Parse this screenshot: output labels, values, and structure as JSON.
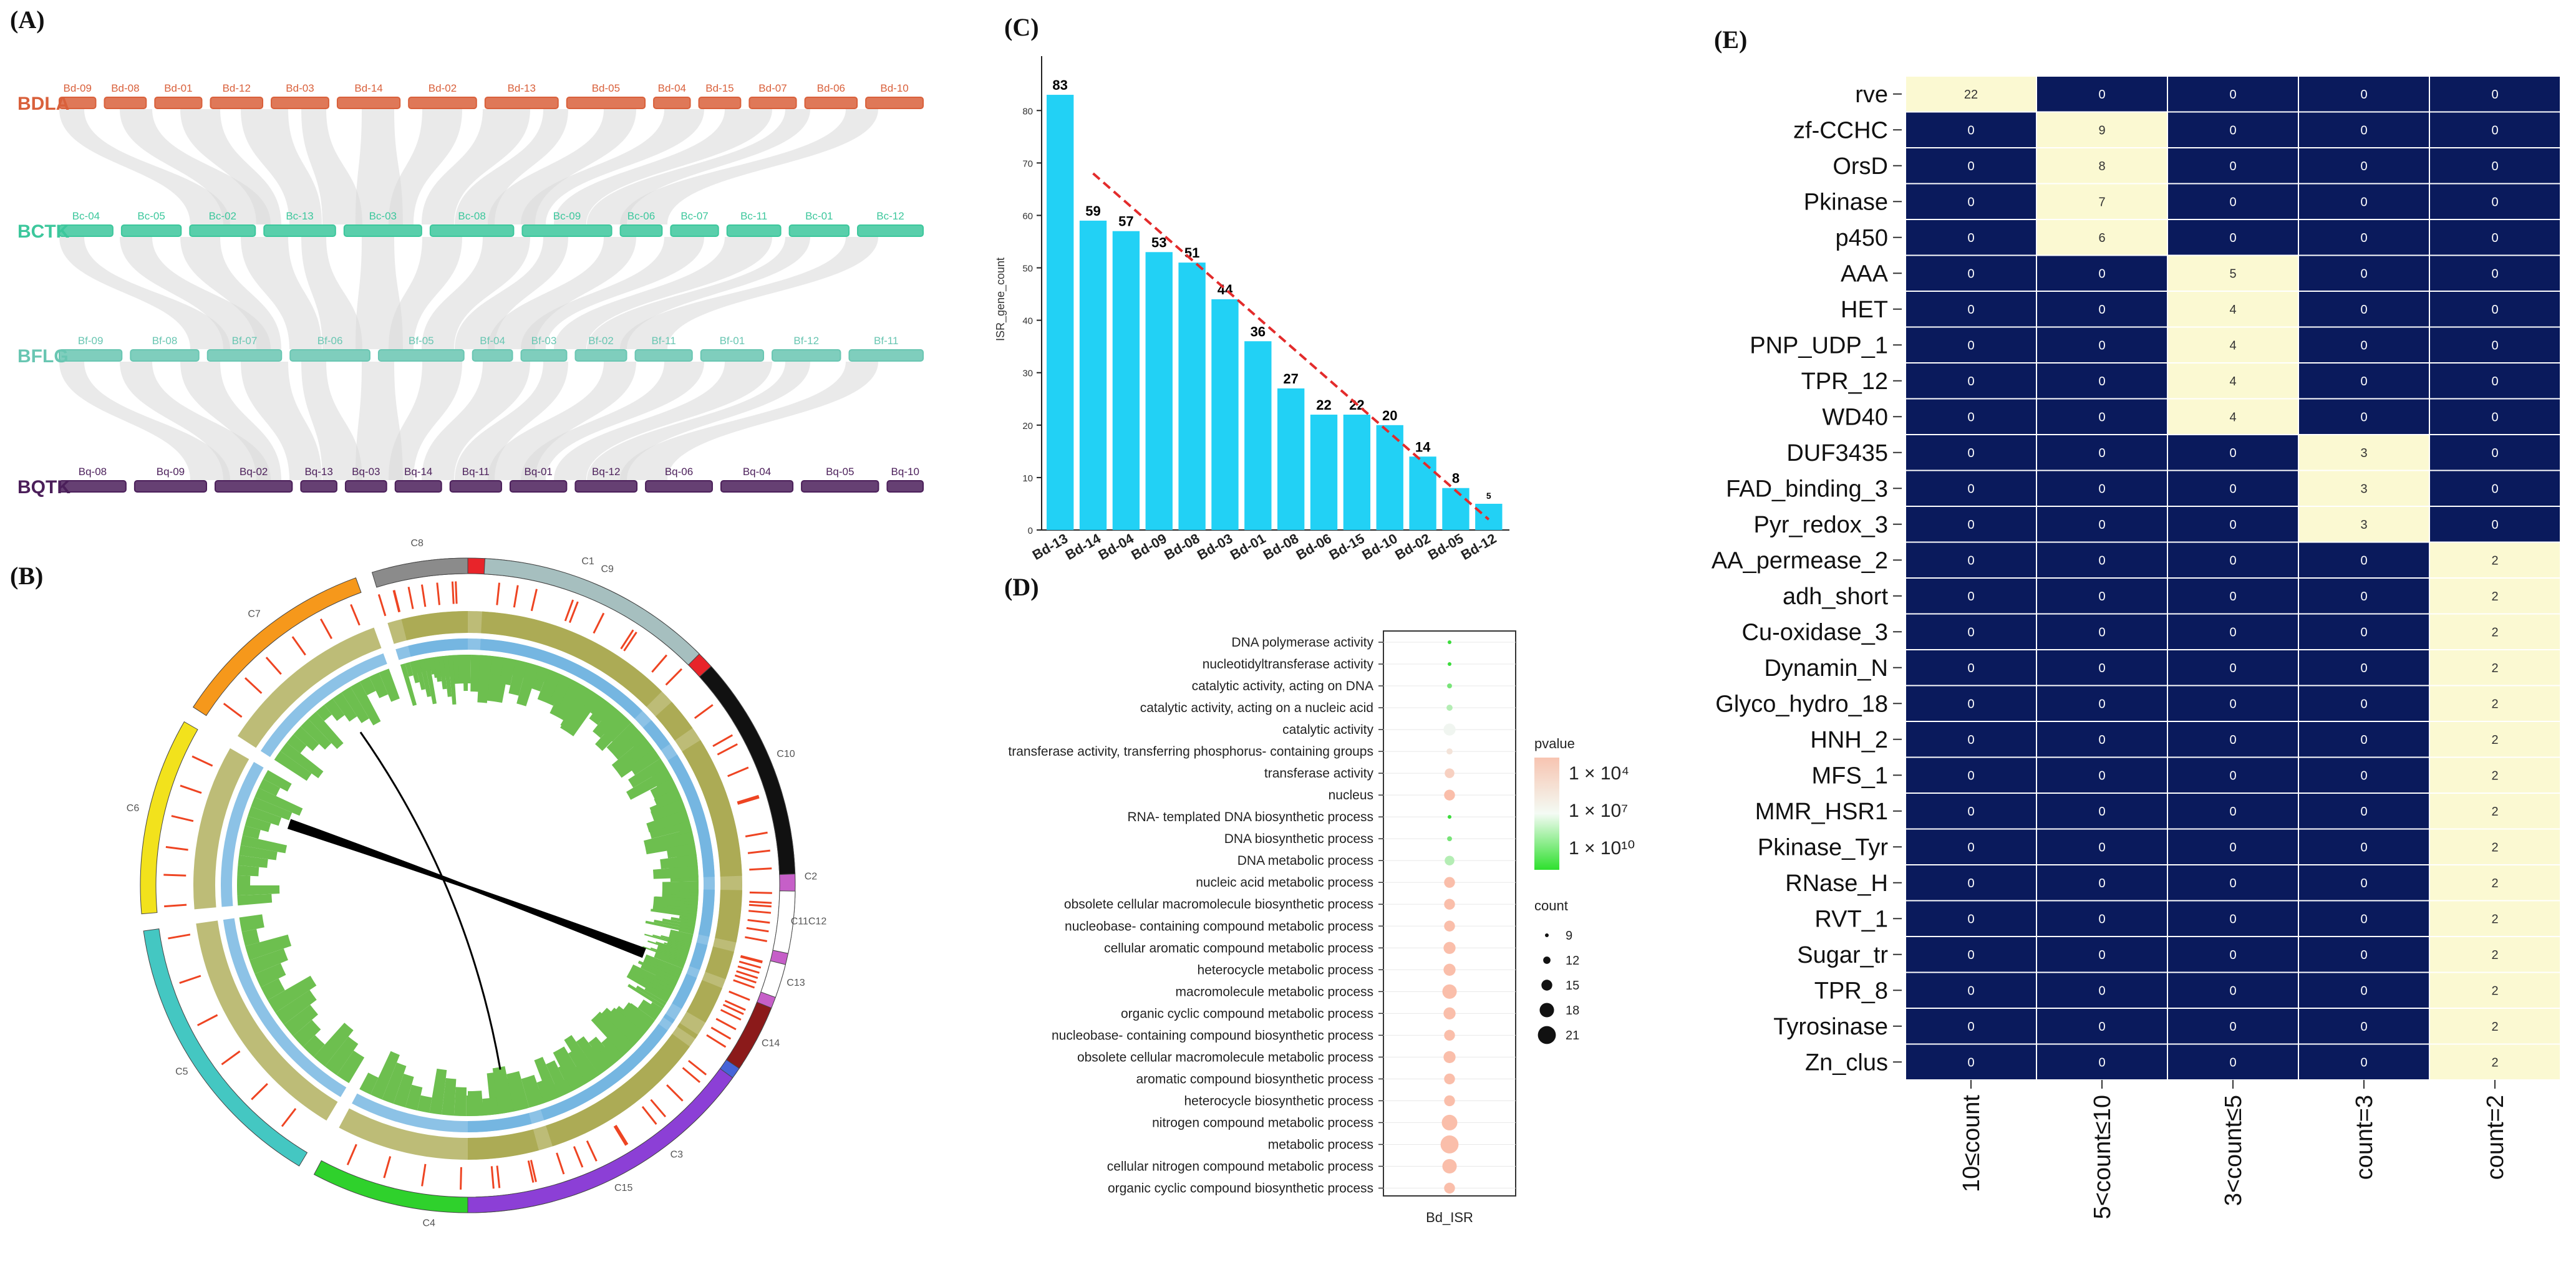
{
  "panels": {
    "A": {
      "label": "(A)",
      "species": [
        {
          "name": "BDLA",
          "color": "#d9603b",
          "chroms": [
            "Bd-09",
            "Bd-08",
            "Bd-01",
            "Bd-12",
            "Bd-03",
            "Bd-14",
            "Bd-02",
            "Bd-13",
            "Bd-05",
            "Bd-04",
            "Bd-15",
            "Bd-07",
            "Bd-06",
            "Bd-10"
          ]
        },
        {
          "name": "BCTK",
          "color": "#3cc79c",
          "chroms": [
            "Bc-04",
            "Bc-05",
            "Bc-02",
            "Bc-13",
            "Bc-03",
            "Bc-08",
            "Bc-09",
            "Bc-06",
            "Bc-07",
            "Bc-11",
            "Bc-01",
            "Bc-12"
          ]
        },
        {
          "name": "BFLG",
          "color": "#69c6b2",
          "chroms": [
            "Bf-09",
            "Bf-08",
            "Bf-07",
            "Bf-06",
            "Bf-05",
            "Bf-04",
            "Bf-03",
            "Bf-02",
            "Bf-11",
            "Bf-01",
            "Bf-12",
            "Bf-11"
          ]
        },
        {
          "name": "BQTK",
          "color": "#4b1f5a",
          "chroms": [
            "Bq-08",
            "Bq-09",
            "Bq-02",
            "Bq-13",
            "Bq-03",
            "Bq-14",
            "Bq-11",
            "Bq-01",
            "Bq-12",
            "Bq-06",
            "Bq-04",
            "Bq-05",
            "Bq-10"
          ]
        }
      ]
    },
    "B": {
      "label": "(B)",
      "chroms": [
        {
          "name": "C1",
          "color": "#e8242a"
        },
        {
          "name": "C2",
          "color": "#c65fc8"
        },
        {
          "name": "C3",
          "color": "#4664d8"
        },
        {
          "name": "C4",
          "color": "#2fd12c"
        },
        {
          "name": "C5",
          "color": "#44c7c2"
        },
        {
          "name": "C6",
          "color": "#f2e21c"
        },
        {
          "name": "C7",
          "color": "#f6981b"
        },
        {
          "name": "C8",
          "color": "#8b8b8b"
        },
        {
          "name": "C9",
          "color": "#a6bfbf"
        },
        {
          "name": "C10",
          "color": "#111111"
        },
        {
          "name": "C11C12",
          "color": "#ffffff"
        },
        {
          "name": "C13",
          "color": "#ffffff"
        },
        {
          "name": "C14",
          "color": "#8b1a1a"
        },
        {
          "name": "C15",
          "color": "#8c3fd6"
        }
      ]
    },
    "C": {
      "label": "(C)",
      "chart_data": {
        "type": "bar",
        "categories": [
          "Bd-13",
          "Bd-14",
          "Bd-04",
          "Bd-09",
          "Bd-08",
          "Bd-03",
          "Bd-01",
          "Bd-08",
          "Bd-06",
          "Bd-15",
          "Bd-10",
          "Bd-02",
          "Bd-05",
          "Bd-12"
        ],
        "values": [
          83,
          59,
          57,
          53,
          51,
          44,
          36,
          27,
          22,
          22,
          20,
          14,
          8,
          5
        ],
        "ylabel": "ISR_gene_count",
        "ylim": [
          0,
          88
        ],
        "yticks": [
          "0",
          "10",
          "20",
          "30",
          "40",
          "50",
          "60",
          "70",
          "80"
        ],
        "bar_color": "#22d1f5",
        "trend_color": "#e32b2b"
      }
    },
    "D": {
      "label": "(D)",
      "chart_data": {
        "type": "scatter",
        "xlabel": "Bd_ISR",
        "terms": [
          "DNA polymerase activity",
          "nucleotidyltransferase activity",
          "catalytic activity, acting on DNA",
          "catalytic activity, acting on a nucleic acid",
          "catalytic activity",
          "transferase activity, transferring phosphorus- containing groups",
          "transferase activity",
          "nucleus",
          "RNA- templated DNA biosynthetic process",
          "DNA biosynthetic process",
          "DNA metabolic process",
          "nucleic acid metabolic process",
          "obsolete cellular macromolecule biosynthetic process",
          "nucleobase- containing compound metabolic process",
          "cellular aromatic compound metabolic process",
          "heterocycle metabolic process",
          "macromolecule metabolic process",
          "organic cyclic compound metabolic process",
          "nucleobase- containing compound biosynthetic process",
          "obsolete cellular macromolecule metabolic process",
          "aromatic compound biosynthetic process",
          "heterocycle biosynthetic process",
          "nitrogen compound metabolic process",
          "metabolic process",
          "cellular nitrogen compound metabolic process",
          "organic cyclic compound biosynthetic process"
        ],
        "counts": [
          9,
          9,
          10,
          11,
          16,
          11,
          14,
          15,
          9,
          10,
          14,
          15,
          15,
          15,
          16,
          16,
          18,
          16,
          15,
          16,
          15,
          15,
          19,
          21,
          18,
          15
        ],
        "pvalue_exponent": [
          10,
          10,
          9,
          8,
          7,
          6,
          5,
          4,
          10,
          9,
          8,
          4,
          4,
          4,
          4,
          4,
          4,
          4,
          4,
          4,
          4,
          4,
          4,
          4,
          4,
          4
        ],
        "legend_pvalue": {
          "title": "pvalue",
          "labels": [
            "1 × 10⁴",
            "1 × 10⁷",
            "1 × 10¹⁰"
          ]
        },
        "legend_count": {
          "title": "count",
          "labels": [
            "9",
            "12",
            "15",
            "18",
            "21"
          ]
        }
      }
    },
    "E": {
      "label": "(E)",
      "chart_data": {
        "type": "heatmap",
        "columns": [
          "10≤count",
          "5<count≤10",
          "3<count≤5",
          "count=3",
          "count=2"
        ],
        "rows": [
          {
            "name": "rve",
            "values": [
              22,
              0,
              0,
              0,
              0
            ]
          },
          {
            "name": "zf-CCHC",
            "values": [
              0,
              9,
              0,
              0,
              0
            ]
          },
          {
            "name": "OrsD",
            "values": [
              0,
              8,
              0,
              0,
              0
            ]
          },
          {
            "name": "Pkinase",
            "values": [
              0,
              7,
              0,
              0,
              0
            ]
          },
          {
            "name": "p450",
            "values": [
              0,
              6,
              0,
              0,
              0
            ]
          },
          {
            "name": "AAA",
            "values": [
              0,
              0,
              5,
              0,
              0
            ]
          },
          {
            "name": "HET",
            "values": [
              0,
              0,
              4,
              0,
              0
            ]
          },
          {
            "name": "PNP_UDP_1",
            "values": [
              0,
              0,
              4,
              0,
              0
            ]
          },
          {
            "name": "TPR_12",
            "values": [
              0,
              0,
              4,
              0,
              0
            ]
          },
          {
            "name": "WD40",
            "values": [
              0,
              0,
              4,
              0,
              0
            ]
          },
          {
            "name": "DUF3435",
            "values": [
              0,
              0,
              0,
              3,
              0
            ]
          },
          {
            "name": "FAD_binding_3",
            "values": [
              0,
              0,
              0,
              3,
              0
            ]
          },
          {
            "name": "Pyr_redox_3",
            "values": [
              0,
              0,
              0,
              3,
              0
            ]
          },
          {
            "name": "AA_permease_2",
            "values": [
              0,
              0,
              0,
              0,
              2
            ]
          },
          {
            "name": "adh_short",
            "values": [
              0,
              0,
              0,
              0,
              2
            ]
          },
          {
            "name": "Cu-oxidase_3",
            "values": [
              0,
              0,
              0,
              0,
              2
            ]
          },
          {
            "name": "Dynamin_N",
            "values": [
              0,
              0,
              0,
              0,
              2
            ]
          },
          {
            "name": "Glyco_hydro_18",
            "values": [
              0,
              0,
              0,
              0,
              2
            ]
          },
          {
            "name": "HNH_2",
            "values": [
              0,
              0,
              0,
              0,
              2
            ]
          },
          {
            "name": "MFS_1",
            "values": [
              0,
              0,
              0,
              0,
              2
            ]
          },
          {
            "name": "MMR_HSR1",
            "values": [
              0,
              0,
              0,
              0,
              2
            ]
          },
          {
            "name": "Pkinase_Tyr",
            "values": [
              0,
              0,
              0,
              0,
              2
            ]
          },
          {
            "name": "RNase_H",
            "values": [
              0,
              0,
              0,
              0,
              2
            ]
          },
          {
            "name": "RVT_1",
            "values": [
              0,
              0,
              0,
              0,
              2
            ]
          },
          {
            "name": "Sugar_tr",
            "values": [
              0,
              0,
              0,
              0,
              2
            ]
          },
          {
            "name": "TPR_8",
            "values": [
              0,
              0,
              0,
              0,
              2
            ]
          },
          {
            "name": "Tyrosinase",
            "values": [
              0,
              0,
              0,
              0,
              2
            ]
          },
          {
            "name": "Zn_clus",
            "values": [
              0,
              0,
              0,
              0,
              2
            ]
          }
        ],
        "zero_color": "#0a1a5c",
        "nonzero_color": "#fbf9d2"
      }
    }
  }
}
